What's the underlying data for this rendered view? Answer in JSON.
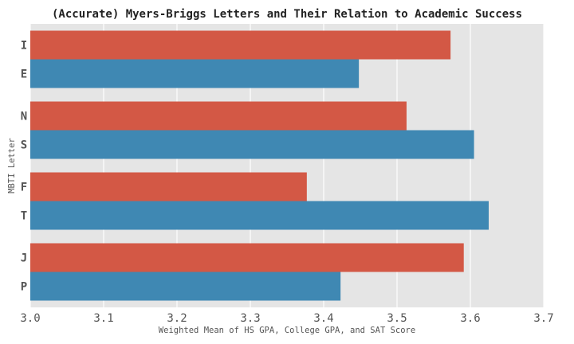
{
  "chart_data": {
    "type": "bar",
    "orientation": "horizontal",
    "title": "(Accurate) Myers-Briggs Letters and Their Relation to Academic Success",
    "xlabel": "Weighted Mean of HS GPA, College GPA, and SAT Score",
    "ylabel": "MBTI Letter",
    "xlim": [
      3.0,
      3.7
    ],
    "xticks": [
      "3.0",
      "3.1",
      "3.2",
      "3.3",
      "3.4",
      "3.5",
      "3.6",
      "3.7"
    ],
    "grid": true,
    "legend": "none",
    "groups": [
      {
        "bars": [
          {
            "label": "I",
            "value": 3.573,
            "color": "#d35845"
          },
          {
            "label": "E",
            "value": 3.448,
            "color": "#3f88b3"
          }
        ]
      },
      {
        "bars": [
          {
            "label": "N",
            "value": 3.513,
            "color": "#d35845"
          },
          {
            "label": "S",
            "value": 3.605,
            "color": "#3f88b3"
          }
        ]
      },
      {
        "bars": [
          {
            "label": "F",
            "value": 3.377,
            "color": "#d35845"
          },
          {
            "label": "T",
            "value": 3.625,
            "color": "#3f88b3"
          }
        ]
      },
      {
        "bars": [
          {
            "label": "J",
            "value": 3.591,
            "color": "#d35845"
          },
          {
            "label": "P",
            "value": 3.423,
            "color": "#3f88b3"
          }
        ]
      }
    ],
    "colors": {
      "plot_background": "#e5e5e5",
      "grid": "#ffffff",
      "text": "#555555",
      "title": "#222222"
    }
  }
}
